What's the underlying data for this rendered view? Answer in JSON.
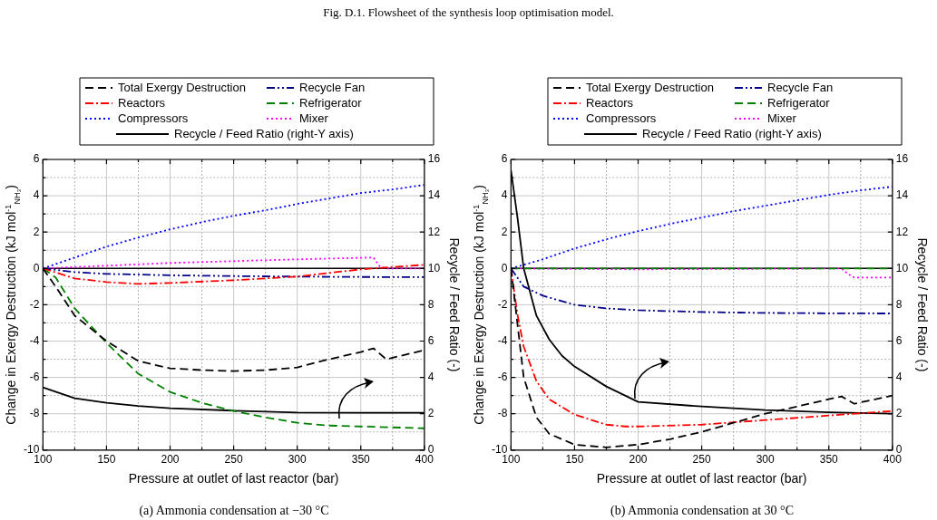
{
  "chart_data": [
    {
      "type": "line",
      "title": "Fig. D.1. Flowsheet of the synthesis loop optimisation model.",
      "xlabel": "Pressure at outlet of last reactor (bar)",
      "ylabel": "Change in Exergy Destruction (kJ mol$^{-1}$$_{NH₃}$)",
      "y2label": "Recycle / Feed Ratio (-)",
      "annotations": [
        "(a) Ammonia condensation at −30 °C"
      ],
      "xlim": [
        100,
        400
      ],
      "xticks": [
        100,
        {
          "value": 125,
          "label": null
        },
        150,
        {
          "value": 175,
          "label": null
        },
        200,
        {
          "value": 225,
          "label": null
        },
        250,
        {
          "value": 275,
          "label": null
        },
        300,
        {
          "value": 325,
          "label": null
        },
        350,
        {
          "value": 375,
          "label": null
        },
        400
      ],
      "ylim": [
        -10,
        6
      ],
      "yticks": [
        -10,
        {
          "value": -9,
          "label": null
        },
        -8,
        {
          "value": -7,
          "label": null
        },
        -6,
        {
          "value": -5,
          "label": null
        },
        -4,
        {
          "value": -3,
          "label": null
        },
        -2,
        {
          "value": -1,
          "label": null
        },
        0,
        {
          "value": 1,
          "label": null
        },
        2,
        {
          "value": 3,
          "label": null
        },
        4,
        {
          "value": 5,
          "label": null
        },
        6
      ],
      "y2lim": [
        0,
        16
      ],
      "y2ticks": [
        0,
        2,
        4,
        6,
        8,
        10,
        12,
        14,
        16
      ],
      "grid": true,
      "legend": "top",
      "marker": "none",
      "ref_lines": [
        {
          "axis": "y",
          "value": 0,
          "color": "#000000",
          "line_style": "solid"
        }
      ],
      "series": [
        {
          "name": "Total Exergy Destruction",
          "color": "#000000",
          "line_style": "dashed",
          "x": [
            100,
            110,
            125,
            150,
            175,
            200,
            225,
            250,
            275,
            300,
            325,
            350,
            360,
            370,
            400
          ],
          "values": [
            0,
            -1,
            -2.6,
            -4.0,
            -5.1,
            -5.5,
            -5.6,
            -5.65,
            -5.6,
            -5.45,
            -5.0,
            -4.6,
            -4.4,
            -5.0,
            -4.5
          ]
        },
        {
          "name": "Reactors",
          "color": "#ff0000",
          "line_style": "dashdot",
          "x": [
            100,
            125,
            150,
            175,
            200,
            250,
            300,
            350,
            400
          ],
          "values": [
            0,
            -0.55,
            -0.75,
            -0.85,
            -0.8,
            -0.65,
            -0.45,
            -0.05,
            0.2
          ]
        },
        {
          "name": "Compressors",
          "color": "#0000ff",
          "line_style": "dotted",
          "x": [
            100,
            125,
            150,
            175,
            200,
            225,
            250,
            275,
            300,
            325,
            350,
            375,
            400
          ],
          "values": [
            0,
            0.6,
            1.2,
            1.7,
            2.15,
            2.55,
            2.9,
            3.2,
            3.55,
            3.85,
            4.15,
            4.35,
            4.6
          ]
        },
        {
          "name": "Recycle Fan",
          "color": "#00008b",
          "line_style": "dashdotdot",
          "x": [
            100,
            125,
            150,
            200,
            250,
            300,
            350,
            400
          ],
          "values": [
            0,
            -0.2,
            -0.3,
            -0.38,
            -0.42,
            -0.45,
            -0.47,
            -0.48
          ]
        },
        {
          "name": "Refrigerator",
          "color": "#008000",
          "line_style": "dashed",
          "x": [
            100,
            110,
            125,
            150,
            175,
            200,
            225,
            250,
            275,
            300,
            325,
            350,
            375,
            400
          ],
          "values": [
            0,
            -0.5,
            -2.2,
            -4.1,
            -5.8,
            -6.8,
            -7.4,
            -7.85,
            -8.2,
            -8.5,
            -8.65,
            -8.7,
            -8.75,
            -8.8
          ]
        },
        {
          "name": "Mixer",
          "color": "#ff00ff",
          "line_style": "dotted",
          "x": [
            100,
            150,
            200,
            250,
            300,
            360,
            365,
            370,
            400
          ],
          "values": [
            0,
            0.15,
            0.3,
            0.4,
            0.5,
            0.6,
            0.1,
            0,
            0
          ]
        },
        {
          "name": "Recycle / Feed Ratio (right-Y axis)",
          "color": "#000000",
          "line_style": "solid",
          "axis": "y2",
          "x": [
            100,
            125,
            150,
            175,
            200,
            250,
            300,
            350,
            400
          ],
          "values": [
            3.45,
            2.85,
            2.6,
            2.43,
            2.3,
            2.17,
            2.07,
            2.05,
            2.05
          ]
        }
      ]
    },
    {
      "type": "line",
      "xlabel": "Pressure at outlet of last reactor (bar)",
      "ylabel": "Change in Exergy Destruction (kJ mol$^{-1}$$_{NH₃}$)",
      "y2label": "Recycle / Feed Ratio (-)",
      "annotations": [
        "(b) Ammonia condensation at 30 °C"
      ],
      "xlim": [
        100,
        400
      ],
      "xticks": [
        100,
        {
          "value": 125,
          "label": null
        },
        150,
        {
          "value": 175,
          "label": null
        },
        200,
        {
          "value": 225,
          "label": null
        },
        250,
        {
          "value": 275,
          "label": null
        },
        300,
        {
          "value": 325,
          "label": null
        },
        350,
        {
          "value": 375,
          "label": null
        },
        400
      ],
      "ylim": [
        -10,
        6
      ],
      "yticks": [
        -10,
        {
          "value": -9,
          "label": null
        },
        -8,
        {
          "value": -7,
          "label": null
        },
        -6,
        {
          "value": -5,
          "label": null
        },
        -4,
        {
          "value": -3,
          "label": null
        },
        -2,
        {
          "value": -1,
          "label": null
        },
        0,
        {
          "value": 1,
          "label": null
        },
        2,
        {
          "value": 3,
          "label": null
        },
        4,
        {
          "value": 5,
          "label": null
        },
        6
      ],
      "y2lim": [
        0,
        16
      ],
      "y2ticks": [
        0,
        2,
        4,
        6,
        8,
        10,
        12,
        14,
        16
      ],
      "grid": true,
      "legend": "top",
      "marker": "none",
      "ref_lines": [
        {
          "axis": "y",
          "value": 0,
          "color": "#000000",
          "line_style": "solid"
        }
      ],
      "series": [
        {
          "name": "Total Exergy Destruction",
          "color": "#000000",
          "line_style": "dashed",
          "x": [
            100,
            105,
            110,
            120,
            130,
            150,
            175,
            200,
            225,
            250,
            275,
            300,
            325,
            350,
            360,
            370,
            400
          ],
          "values": [
            0,
            -3,
            -6,
            -8.2,
            -9.1,
            -9.7,
            -9.85,
            -9.7,
            -9.4,
            -9.0,
            -8.5,
            -8.0,
            -7.6,
            -7.2,
            -7.05,
            -7.45,
            -7.0
          ]
        },
        {
          "name": "Reactors",
          "color": "#ff0000",
          "line_style": "dashdot",
          "x": [
            100,
            105,
            110,
            120,
            130,
            150,
            175,
            190,
            200,
            250,
            300,
            350,
            400
          ],
          "values": [
            0,
            -2.5,
            -4.3,
            -6.2,
            -7.2,
            -8.05,
            -8.6,
            -8.7,
            -8.7,
            -8.6,
            -8.35,
            -8.1,
            -7.85
          ]
        },
        {
          "name": "Compressors",
          "color": "#0000ff",
          "line_style": "dotted",
          "x": [
            100,
            110,
            125,
            150,
            175,
            200,
            225,
            250,
            275,
            300,
            325,
            350,
            375,
            400
          ],
          "values": [
            0,
            0.2,
            0.5,
            1.1,
            1.6,
            2.05,
            2.45,
            2.8,
            3.15,
            3.45,
            3.75,
            4.05,
            4.3,
            4.5
          ]
        },
        {
          "name": "Recycle Fan",
          "color": "#00008b",
          "line_style": "dashdotdot",
          "x": [
            100,
            110,
            125,
            150,
            175,
            200,
            250,
            300,
            350,
            400
          ],
          "values": [
            0,
            -1,
            -1.5,
            -2.0,
            -2.2,
            -2.3,
            -2.4,
            -2.45,
            -2.47,
            -2.48
          ]
        },
        {
          "name": "Refrigerator",
          "color": "#008000",
          "line_style": "dashed",
          "x": [
            100,
            400
          ],
          "values": [
            0,
            0
          ]
        },
        {
          "name": "Mixer",
          "color": "#ff00ff",
          "line_style": "dotted",
          "x": [
            100,
            200,
            360,
            365,
            370,
            400
          ],
          "values": [
            0,
            -0.05,
            0,
            -0.3,
            -0.5,
            -0.5
          ]
        },
        {
          "name": "Recycle / Feed Ratio (right-Y axis)",
          "color": "#000000",
          "line_style": "solid",
          "axis": "y2",
          "x": [
            100,
            105,
            110,
            120,
            130,
            140,
            150,
            175,
            200,
            250,
            300,
            350,
            400
          ],
          "values": [
            15.4,
            12.85,
            10,
            7.4,
            6.1,
            5.2,
            4.6,
            3.5,
            2.65,
            2.4,
            2.2,
            2.08,
            2.0
          ]
        }
      ]
    }
  ]
}
